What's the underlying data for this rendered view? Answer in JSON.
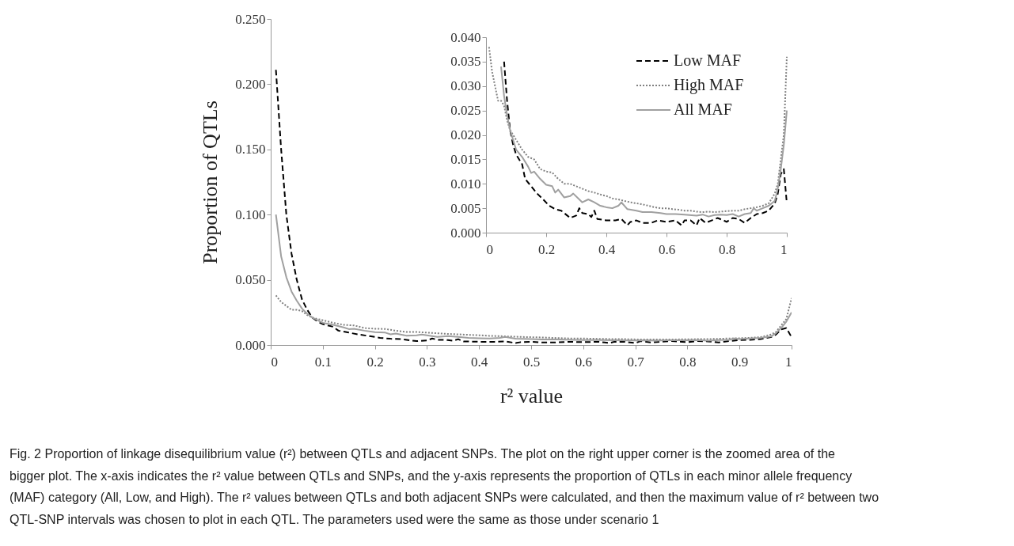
{
  "chart_data": [
    {
      "type": "line",
      "xlabel": "r² value",
      "ylabel": "Proportion of QTLs",
      "xlim": [
        0,
        1
      ],
      "ylim": [
        0,
        0.25
      ],
      "xticks": [
        0,
        0.1,
        0.2,
        0.3,
        0.4,
        0.5,
        0.6,
        0.7,
        0.8,
        0.9,
        1
      ],
      "yticks": [
        {
          "value": 0,
          "label": "0.000"
        },
        {
          "value": 0.05,
          "label": "0.050"
        },
        {
          "value": 0.1,
          "label": "0.100"
        },
        {
          "value": 0.15,
          "label": "0.150"
        },
        {
          "value": 0.2,
          "label": "0.200"
        },
        {
          "value": 0.25,
          "label": "0.250"
        }
      ],
      "grid": false,
      "legend": false,
      "marker": "none",
      "annotations": [
        "Fig. 2 Proportion of linkage disequilibrium value (r²) between QTLs and adjacent SNPs. The plot on the right upper corner is the zoomed area of the bigger plot. The x-axis indicates the r² value between QTLs and SNPs, and the y-axis represents the proportion of QTLs in each minor allele frequency (MAF) category (All, Low, and High). The r² values between QTLs and both adjacent SNPs were calculated, and then the maximum value of r² between two QTL-SNP intervals was chosen to plot in each QTL. The parameters used were the same as those under scenario 1"
      ],
      "series": [
        {
          "color": "#000000",
          "line_style": "dashed",
          "x": [
            0.01,
            0.02,
            0.03,
            0.04,
            0.05,
            0.06,
            0.07,
            0.08,
            0.09,
            0.1,
            0.12,
            0.13,
            0.15,
            0.17,
            0.19,
            0.21,
            0.23,
            0.25,
            0.27,
            0.28,
            0.3,
            0.31,
            0.32,
            0.34,
            0.35,
            0.36,
            0.37,
            0.4,
            0.43,
            0.45,
            0.47,
            0.48,
            0.5,
            0.52,
            0.55,
            0.57,
            0.6,
            0.63,
            0.65,
            0.66,
            0.68,
            0.7,
            0.71,
            0.73,
            0.75,
            0.77,
            0.79,
            0.8,
            0.82,
            0.84,
            0.86,
            0.88,
            0.9,
            0.92,
            0.94,
            0.96,
            0.97,
            0.98,
            0.99,
            1
          ],
          "values": [
            0.211,
            0.15,
            0.1,
            0.07,
            0.05,
            0.035,
            0.027,
            0.021,
            0.018,
            0.016,
            0.014,
            0.011,
            0.0095,
            0.008,
            0.0068,
            0.0055,
            0.0048,
            0.0045,
            0.0035,
            0.003,
            0.0035,
            0.005,
            0.004,
            0.0038,
            0.0032,
            0.0045,
            0.0028,
            0.0025,
            0.0025,
            0.0028,
            0.0015,
            0.0022,
            0.0025,
            0.002,
            0.002,
            0.0025,
            0.0022,
            0.0025,
            0.0015,
            0.0025,
            0.0025,
            0.0015,
            0.003,
            0.002,
            0.0025,
            0.003,
            0.0025,
            0.0022,
            0.003,
            0.0028,
            0.002,
            0.003,
            0.0038,
            0.004,
            0.0045,
            0.006,
            0.008,
            0.012,
            0.013,
            0.006
          ]
        },
        {
          "color": "#808080",
          "line_style": "dotted",
          "x": [
            0.01,
            0.02,
            0.03,
            0.04,
            0.05,
            0.06,
            0.07,
            0.08,
            0.09,
            0.1,
            0.12,
            0.14,
            0.16,
            0.18,
            0.2,
            0.22,
            0.24,
            0.26,
            0.28,
            0.3,
            0.32,
            0.34,
            0.36,
            0.38,
            0.4,
            0.42,
            0.44,
            0.46,
            0.48,
            0.5,
            0.52,
            0.54,
            0.56,
            0.58,
            0.6,
            0.62,
            0.64,
            0.66,
            0.68,
            0.7,
            0.72,
            0.74,
            0.76,
            0.78,
            0.8,
            0.82,
            0.84,
            0.86,
            0.88,
            0.9,
            0.92,
            0.94,
            0.96,
            0.97,
            0.98,
            0.99,
            1
          ],
          "values": [
            0.038,
            0.033,
            0.03,
            0.027,
            0.027,
            0.026,
            0.023,
            0.021,
            0.02,
            0.019,
            0.017,
            0.0155,
            0.015,
            0.013,
            0.0125,
            0.0123,
            0.011,
            0.01,
            0.01,
            0.0095,
            0.009,
            0.0085,
            0.0082,
            0.0078,
            0.0075,
            0.007,
            0.0068,
            0.0065,
            0.0062,
            0.006,
            0.0058,
            0.0055,
            0.0052,
            0.005,
            0.005,
            0.0048,
            0.0047,
            0.0045,
            0.0045,
            0.0043,
            0.0042,
            0.0043,
            0.0042,
            0.0043,
            0.0044,
            0.0045,
            0.0045,
            0.0048,
            0.005,
            0.0052,
            0.0055,
            0.006,
            0.008,
            0.01,
            0.015,
            0.02,
            0.036
          ]
        },
        {
          "color": "#a0a0a0",
          "line_style": "solid",
          "x": [
            0.01,
            0.02,
            0.03,
            0.04,
            0.05,
            0.06,
            0.07,
            0.08,
            0.09,
            0.1,
            0.12,
            0.14,
            0.15,
            0.16,
            0.18,
            0.2,
            0.22,
            0.23,
            0.24,
            0.26,
            0.28,
            0.29,
            0.31,
            0.32,
            0.34,
            0.36,
            0.38,
            0.4,
            0.42,
            0.44,
            0.45,
            0.47,
            0.5,
            0.52,
            0.55,
            0.58,
            0.6,
            0.63,
            0.66,
            0.7,
            0.72,
            0.74,
            0.76,
            0.78,
            0.8,
            0.82,
            0.84,
            0.86,
            0.88,
            0.89,
            0.9,
            0.92,
            0.94,
            0.96,
            0.97,
            0.98,
            0.99,
            1
          ],
          "values": [
            0.1,
            0.068,
            0.052,
            0.041,
            0.034,
            0.028,
            0.024,
            0.021,
            0.019,
            0.017,
            0.0155,
            0.0135,
            0.0122,
            0.0125,
            0.011,
            0.0098,
            0.0095,
            0.0082,
            0.0088,
            0.0072,
            0.0075,
            0.008,
            0.0068,
            0.0062,
            0.0068,
            0.0062,
            0.0055,
            0.0052,
            0.005,
            0.0055,
            0.0062,
            0.0048,
            0.0045,
            0.0042,
            0.0042,
            0.004,
            0.0038,
            0.0038,
            0.0037,
            0.0035,
            0.0037,
            0.0033,
            0.0036,
            0.0037,
            0.0036,
            0.0038,
            0.0033,
            0.0038,
            0.004,
            0.005,
            0.0045,
            0.005,
            0.0055,
            0.0065,
            0.009,
            0.013,
            0.018,
            0.025
          ]
        }
      ]
    },
    {
      "type": "line",
      "xlim": [
        0,
        1
      ],
      "ylim": [
        0,
        0.04
      ],
      "xticks": [
        0,
        0.2,
        0.4,
        0.6,
        0.8,
        1
      ],
      "yticks": [
        {
          "value": 0,
          "label": "0.000"
        },
        {
          "value": 0.005,
          "label": "0.005"
        },
        {
          "value": 0.01,
          "label": "0.010"
        },
        {
          "value": 0.015,
          "label": "0.015"
        },
        {
          "value": 0.02,
          "label": "0.020"
        },
        {
          "value": 0.025,
          "label": "0.025"
        },
        {
          "value": 0.03,
          "label": "0.030"
        },
        {
          "value": 0.035,
          "label": "0.035"
        },
        {
          "value": 0.04,
          "label": "0.040"
        }
      ],
      "grid": false,
      "legend": "top right",
      "marker": "none",
      "series": [
        {
          "name": "Low MAF",
          "color": "#000000",
          "line_style": "dashed",
          "x": [
            0.06,
            0.07,
            0.08,
            0.09,
            0.1,
            0.12,
            0.13,
            0.15,
            0.17,
            0.19,
            0.21,
            0.23,
            0.25,
            0.27,
            0.28,
            0.3,
            0.31,
            0.32,
            0.34,
            0.35,
            0.36,
            0.37,
            0.4,
            0.43,
            0.45,
            0.47,
            0.48,
            0.5,
            0.52,
            0.55,
            0.57,
            0.6,
            0.63,
            0.65,
            0.66,
            0.68,
            0.7,
            0.71,
            0.73,
            0.75,
            0.77,
            0.79,
            0.8,
            0.82,
            0.84,
            0.86,
            0.88,
            0.9,
            0.92,
            0.94,
            0.96,
            0.97,
            0.98,
            0.99,
            1
          ],
          "values": [
            0.035,
            0.027,
            0.021,
            0.018,
            0.016,
            0.014,
            0.011,
            0.0095,
            0.008,
            0.0068,
            0.0055,
            0.0048,
            0.0045,
            0.0035,
            0.003,
            0.0035,
            0.005,
            0.004,
            0.0038,
            0.0032,
            0.0045,
            0.0028,
            0.0025,
            0.0025,
            0.0028,
            0.0015,
            0.0022,
            0.0025,
            0.002,
            0.002,
            0.0025,
            0.0022,
            0.0025,
            0.0015,
            0.0025,
            0.0025,
            0.0015,
            0.003,
            0.002,
            0.0025,
            0.003,
            0.0025,
            0.0022,
            0.003,
            0.0028,
            0.002,
            0.003,
            0.0038,
            0.004,
            0.0045,
            0.006,
            0.008,
            0.012,
            0.013,
            0.006
          ]
        },
        {
          "name": "High MAF",
          "color": "#808080",
          "line_style": "dotted",
          "x": [
            0.01,
            0.02,
            0.03,
            0.04,
            0.05,
            0.06,
            0.07,
            0.08,
            0.09,
            0.1,
            0.12,
            0.14,
            0.16,
            0.18,
            0.2,
            0.22,
            0.24,
            0.26,
            0.28,
            0.3,
            0.32,
            0.34,
            0.36,
            0.38,
            0.4,
            0.42,
            0.44,
            0.46,
            0.48,
            0.5,
            0.52,
            0.54,
            0.56,
            0.58,
            0.6,
            0.62,
            0.64,
            0.66,
            0.68,
            0.7,
            0.72,
            0.74,
            0.76,
            0.78,
            0.8,
            0.82,
            0.84,
            0.86,
            0.88,
            0.9,
            0.92,
            0.94,
            0.96,
            0.97,
            0.98,
            0.99,
            1
          ],
          "values": [
            0.038,
            0.033,
            0.03,
            0.027,
            0.027,
            0.026,
            0.023,
            0.021,
            0.02,
            0.019,
            0.017,
            0.0155,
            0.015,
            0.013,
            0.0125,
            0.0123,
            0.011,
            0.01,
            0.01,
            0.0095,
            0.009,
            0.0085,
            0.0082,
            0.0078,
            0.0075,
            0.007,
            0.0068,
            0.0065,
            0.0062,
            0.006,
            0.0058,
            0.0055,
            0.0052,
            0.005,
            0.005,
            0.0048,
            0.0047,
            0.0045,
            0.0045,
            0.0043,
            0.0042,
            0.0043,
            0.0042,
            0.0043,
            0.0044,
            0.0045,
            0.0045,
            0.0048,
            0.005,
            0.0052,
            0.0055,
            0.006,
            0.008,
            0.01,
            0.015,
            0.02,
            0.036
          ]
        },
        {
          "name": "All MAF",
          "color": "#a0a0a0",
          "line_style": "solid",
          "x": [
            0.05,
            0.06,
            0.07,
            0.08,
            0.09,
            0.1,
            0.12,
            0.14,
            0.15,
            0.16,
            0.18,
            0.2,
            0.22,
            0.23,
            0.24,
            0.26,
            0.28,
            0.29,
            0.31,
            0.32,
            0.34,
            0.36,
            0.38,
            0.4,
            0.42,
            0.44,
            0.45,
            0.47,
            0.5,
            0.52,
            0.55,
            0.58,
            0.6,
            0.63,
            0.66,
            0.7,
            0.72,
            0.74,
            0.76,
            0.78,
            0.8,
            0.82,
            0.84,
            0.86,
            0.88,
            0.89,
            0.9,
            0.92,
            0.94,
            0.96,
            0.97,
            0.98,
            0.99,
            1
          ],
          "values": [
            0.034,
            0.028,
            0.024,
            0.021,
            0.019,
            0.017,
            0.0155,
            0.0135,
            0.0122,
            0.0125,
            0.011,
            0.0098,
            0.0095,
            0.0082,
            0.0088,
            0.0072,
            0.0075,
            0.008,
            0.0068,
            0.0062,
            0.0068,
            0.0062,
            0.0055,
            0.0052,
            0.005,
            0.0055,
            0.0062,
            0.0048,
            0.0045,
            0.0042,
            0.0042,
            0.004,
            0.0038,
            0.0038,
            0.0037,
            0.0035,
            0.0037,
            0.0033,
            0.0036,
            0.0037,
            0.0036,
            0.0038,
            0.0033,
            0.0038,
            0.004,
            0.005,
            0.0045,
            0.005,
            0.0055,
            0.0065,
            0.009,
            0.013,
            0.018,
            0.025
          ]
        }
      ]
    }
  ]
}
